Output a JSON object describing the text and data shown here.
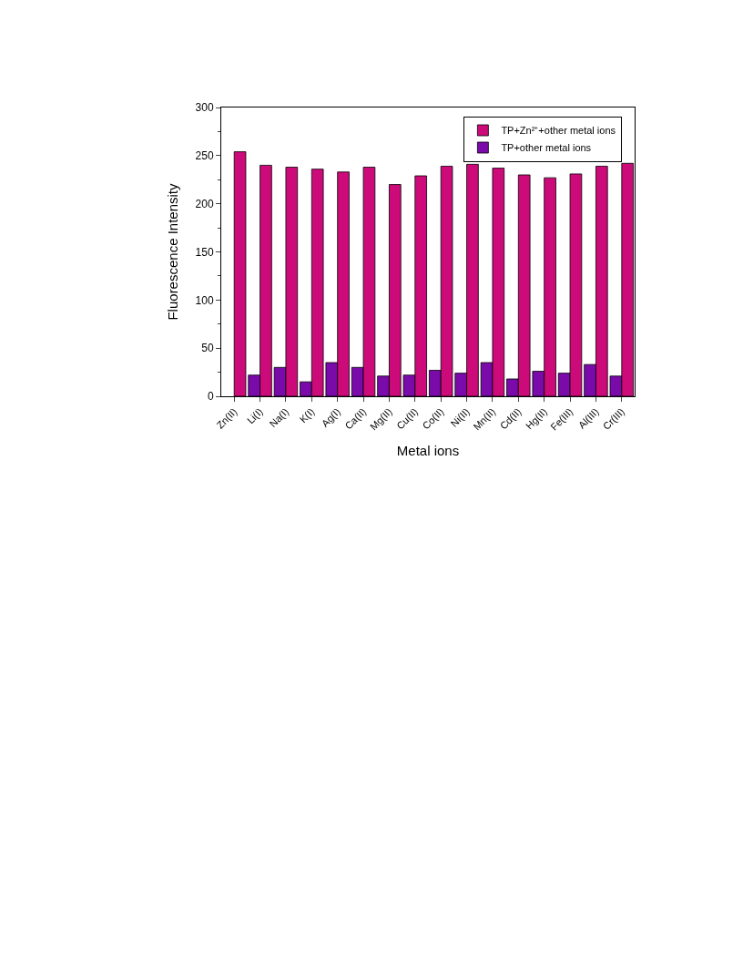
{
  "chart_data": {
    "type": "bar",
    "xlabel": "Metal ions",
    "ylabel": "Fluorescence Intensity",
    "categories": [
      "Zn(II)",
      "Li(I)",
      "Na(I)",
      "K(I)",
      "Ag(I)",
      "Ca(II)",
      "Mg(II)",
      "Cu(II)",
      "Co(II)",
      "Ni(II)",
      "Mn(II)",
      "Cd(II)",
      "Hg(II)",
      "Fe(III)",
      "Al(III)",
      "Cr(III)"
    ],
    "series": [
      {
        "name": "TP+Zn²⁺+other metal ions",
        "color": "#cc0a7a",
        "values": [
          254,
          240,
          238,
          236,
          233,
          238,
          220,
          229,
          239,
          241,
          237,
          230,
          227,
          231,
          239,
          242
        ]
      },
      {
        "name": "TP+other metal ions",
        "color": "#7a0aaa",
        "values": [
          null,
          22,
          30,
          15,
          35,
          30,
          21,
          22,
          27,
          24,
          35,
          18,
          26,
          24,
          33,
          21
        ]
      }
    ],
    "ylim": [
      0,
      300
    ],
    "yticks": [
      0,
      50,
      100,
      150,
      200,
      250,
      300
    ],
    "legend": "top right"
  }
}
